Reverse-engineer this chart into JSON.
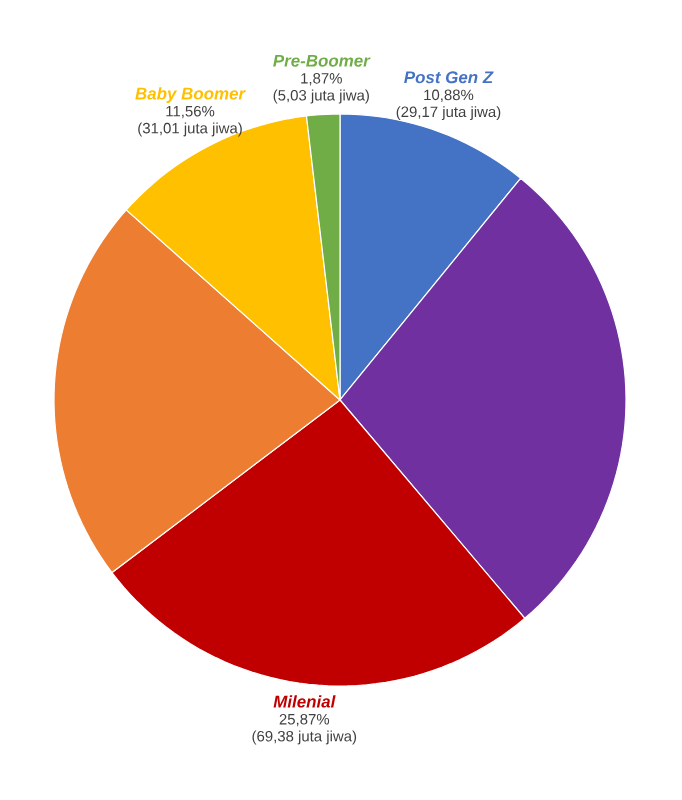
{
  "chart_data": {
    "type": "pie",
    "categories": [
      "Post Gen Z",
      null,
      "Milenial",
      null,
      "Baby Boomer",
      "Pre-Boomer"
    ],
    "values": [
      10.88,
      27.94,
      25.87,
      21.88,
      11.56,
      1.87
    ],
    "colors": [
      "#4472c4",
      "#7030a0",
      "#c00000",
      "#ed7d31",
      "#ffc000",
      "#70ad47"
    ],
    "value_labels": [
      "10,88%",
      null,
      "25,87%",
      null,
      "11,56%",
      "1,87%"
    ],
    "annotations": [
      "(29,17 juta jiwa)",
      "(69,38 juta jiwa)",
      "(31,01 juta jiwa)",
      "(5,03 juta jiwa)"
    ]
  }
}
